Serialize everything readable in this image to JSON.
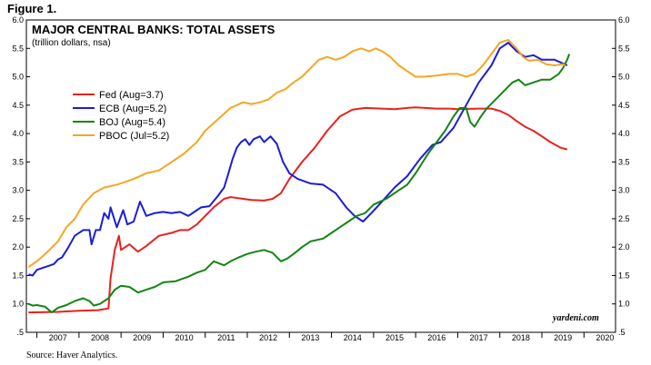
{
  "figure_label": "Figure 1.",
  "source": "Source: Haver Analytics.",
  "chart_data": {
    "type": "line",
    "title": "MAJOR CENTRAL BANKS: TOTAL ASSETS",
    "subtitle": "(trillion dollars, nsa)",
    "credit": "yardeni.com",
    "ylim": [
      0.5,
      6.0
    ],
    "xlim": [
      2006.75,
      2020.75
    ],
    "y_ticks": [
      ".5",
      "1.0",
      "1.5",
      "2.0",
      "2.5",
      "3.0",
      "3.5",
      "4.0",
      "4.5",
      "5.0",
      "5.5",
      "6.0"
    ],
    "x_ticks": [
      "2007",
      "2008",
      "2009",
      "2010",
      "2011",
      "2012",
      "2013",
      "2014",
      "2015",
      "2016",
      "2017",
      "2018",
      "2019",
      "2020"
    ],
    "grid": false,
    "legend_position": "upper-left",
    "series": [
      {
        "name": "Fed (Aug=3.7)",
        "color": "#e8211d",
        "points": [
          [
            2006.8,
            0.85
          ],
          [
            2007.5,
            0.86
          ],
          [
            2008.0,
            0.88
          ],
          [
            2008.45,
            0.89
          ],
          [
            2008.7,
            0.92
          ],
          [
            2008.75,
            1.45
          ],
          [
            2008.85,
            1.95
          ],
          [
            2008.95,
            2.2
          ],
          [
            2009.0,
            1.95
          ],
          [
            2009.2,
            2.05
          ],
          [
            2009.4,
            1.92
          ],
          [
            2009.6,
            2.02
          ],
          [
            2009.9,
            2.2
          ],
          [
            2010.2,
            2.25
          ],
          [
            2010.4,
            2.3
          ],
          [
            2010.6,
            2.3
          ],
          [
            2010.8,
            2.4
          ],
          [
            2011.0,
            2.55
          ],
          [
            2011.2,
            2.7
          ],
          [
            2011.45,
            2.85
          ],
          [
            2011.6,
            2.88
          ],
          [
            2011.9,
            2.85
          ],
          [
            2012.1,
            2.83
          ],
          [
            2012.4,
            2.82
          ],
          [
            2012.6,
            2.85
          ],
          [
            2012.8,
            2.95
          ],
          [
            2013.0,
            3.2
          ],
          [
            2013.3,
            3.5
          ],
          [
            2013.6,
            3.75
          ],
          [
            2013.9,
            4.05
          ],
          [
            2014.2,
            4.3
          ],
          [
            2014.5,
            4.42
          ],
          [
            2014.8,
            4.45
          ],
          [
            2015.2,
            4.44
          ],
          [
            2015.5,
            4.43
          ],
          [
            2015.8,
            4.45
          ],
          [
            2016.0,
            4.46
          ],
          [
            2016.5,
            4.44
          ],
          [
            2016.8,
            4.44
          ],
          [
            2017.0,
            4.43
          ],
          [
            2017.5,
            4.44
          ],
          [
            2017.8,
            4.44
          ],
          [
            2018.0,
            4.4
          ],
          [
            2018.2,
            4.33
          ],
          [
            2018.4,
            4.22
          ],
          [
            2018.6,
            4.12
          ],
          [
            2018.8,
            4.05
          ],
          [
            2019.0,
            3.95
          ],
          [
            2019.2,
            3.85
          ],
          [
            2019.45,
            3.75
          ],
          [
            2019.6,
            3.72
          ]
        ]
      },
      {
        "name": "ECB (Aug=5.2)",
        "color": "#1c1cd9",
        "points": [
          [
            2006.8,
            1.52
          ],
          [
            2006.9,
            1.5
          ],
          [
            2007.0,
            1.6
          ],
          [
            2007.2,
            1.65
          ],
          [
            2007.4,
            1.7
          ],
          [
            2007.5,
            1.78
          ],
          [
            2007.6,
            1.82
          ],
          [
            2007.75,
            2.0
          ],
          [
            2007.9,
            2.2
          ],
          [
            2008.1,
            2.3
          ],
          [
            2008.25,
            2.3
          ],
          [
            2008.3,
            2.05
          ],
          [
            2008.4,
            2.3
          ],
          [
            2008.5,
            2.3
          ],
          [
            2008.6,
            2.6
          ],
          [
            2008.7,
            2.5
          ],
          [
            2008.75,
            2.7
          ],
          [
            2008.9,
            2.35
          ],
          [
            2009.05,
            2.65
          ],
          [
            2009.15,
            2.4
          ],
          [
            2009.3,
            2.45
          ],
          [
            2009.45,
            2.8
          ],
          [
            2009.6,
            2.55
          ],
          [
            2009.8,
            2.6
          ],
          [
            2010.0,
            2.62
          ],
          [
            2010.2,
            2.6
          ],
          [
            2010.4,
            2.62
          ],
          [
            2010.6,
            2.55
          ],
          [
            2010.8,
            2.65
          ],
          [
            2010.9,
            2.7
          ],
          [
            2011.1,
            2.72
          ],
          [
            2011.3,
            2.9
          ],
          [
            2011.45,
            3.05
          ],
          [
            2011.55,
            3.3
          ],
          [
            2011.65,
            3.55
          ],
          [
            2011.75,
            3.75
          ],
          [
            2011.85,
            3.85
          ],
          [
            2011.95,
            3.9
          ],
          [
            2012.05,
            3.8
          ],
          [
            2012.15,
            3.9
          ],
          [
            2012.3,
            3.95
          ],
          [
            2012.4,
            3.85
          ],
          [
            2012.55,
            3.95
          ],
          [
            2012.7,
            3.82
          ],
          [
            2012.85,
            3.5
          ],
          [
            2013.0,
            3.3
          ],
          [
            2013.2,
            3.2
          ],
          [
            2013.5,
            3.12
          ],
          [
            2013.8,
            3.1
          ],
          [
            2014.1,
            2.95
          ],
          [
            2014.35,
            2.7
          ],
          [
            2014.55,
            2.55
          ],
          [
            2014.75,
            2.45
          ],
          [
            2014.95,
            2.6
          ],
          [
            2015.2,
            2.8
          ],
          [
            2015.5,
            3.05
          ],
          [
            2015.8,
            3.25
          ],
          [
            2016.1,
            3.55
          ],
          [
            2016.4,
            3.8
          ],
          [
            2016.6,
            3.85
          ],
          [
            2016.9,
            4.1
          ],
          [
            2017.2,
            4.5
          ],
          [
            2017.5,
            4.9
          ],
          [
            2017.8,
            5.2
          ],
          [
            2018.0,
            5.5
          ],
          [
            2018.2,
            5.6
          ],
          [
            2018.4,
            5.45
          ],
          [
            2018.6,
            5.35
          ],
          [
            2018.8,
            5.38
          ],
          [
            2019.0,
            5.3
          ],
          [
            2019.3,
            5.3
          ],
          [
            2019.6,
            5.2
          ]
        ]
      },
      {
        "name": "BOJ (Aug=5.4)",
        "color": "#128512",
        "points": [
          [
            2006.8,
            1.0
          ],
          [
            2006.9,
            0.97
          ],
          [
            2007.0,
            0.98
          ],
          [
            2007.2,
            0.95
          ],
          [
            2007.35,
            0.85
          ],
          [
            2007.5,
            0.93
          ],
          [
            2007.7,
            0.98
          ],
          [
            2007.9,
            1.05
          ],
          [
            2008.1,
            1.1
          ],
          [
            2008.25,
            1.05
          ],
          [
            2008.35,
            0.97
          ],
          [
            2008.5,
            1.0
          ],
          [
            2008.7,
            1.1
          ],
          [
            2008.85,
            1.25
          ],
          [
            2009.0,
            1.32
          ],
          [
            2009.2,
            1.3
          ],
          [
            2009.4,
            1.2
          ],
          [
            2009.6,
            1.25
          ],
          [
            2009.8,
            1.3
          ],
          [
            2010.0,
            1.38
          ],
          [
            2010.3,
            1.4
          ],
          [
            2010.6,
            1.48
          ],
          [
            2010.8,
            1.55
          ],
          [
            2011.0,
            1.6
          ],
          [
            2011.2,
            1.75
          ],
          [
            2011.45,
            1.68
          ],
          [
            2011.6,
            1.75
          ],
          [
            2011.8,
            1.82
          ],
          [
            2012.0,
            1.88
          ],
          [
            2012.2,
            1.92
          ],
          [
            2012.4,
            1.95
          ],
          [
            2012.6,
            1.9
          ],
          [
            2012.8,
            1.75
          ],
          [
            2012.95,
            1.8
          ],
          [
            2013.1,
            1.88
          ],
          [
            2013.3,
            2.0
          ],
          [
            2013.5,
            2.1
          ],
          [
            2013.8,
            2.15
          ],
          [
            2014.0,
            2.25
          ],
          [
            2014.2,
            2.35
          ],
          [
            2014.4,
            2.45
          ],
          [
            2014.6,
            2.55
          ],
          [
            2014.8,
            2.6
          ],
          [
            2015.0,
            2.75
          ],
          [
            2015.3,
            2.85
          ],
          [
            2015.6,
            3.0
          ],
          [
            2015.8,
            3.1
          ],
          [
            2016.0,
            3.3
          ],
          [
            2016.3,
            3.65
          ],
          [
            2016.5,
            3.85
          ],
          [
            2016.7,
            4.05
          ],
          [
            2016.9,
            4.3
          ],
          [
            2017.05,
            4.45
          ],
          [
            2017.2,
            4.45
          ],
          [
            2017.3,
            4.2
          ],
          [
            2017.4,
            4.12
          ],
          [
            2017.55,
            4.3
          ],
          [
            2017.7,
            4.45
          ],
          [
            2017.9,
            4.6
          ],
          [
            2018.1,
            4.75
          ],
          [
            2018.3,
            4.9
          ],
          [
            2018.45,
            4.95
          ],
          [
            2018.6,
            4.85
          ],
          [
            2018.8,
            4.9
          ],
          [
            2019.0,
            4.95
          ],
          [
            2019.2,
            4.95
          ],
          [
            2019.4,
            5.05
          ],
          [
            2019.5,
            5.15
          ],
          [
            2019.6,
            5.3
          ],
          [
            2019.65,
            5.4
          ]
        ]
      },
      {
        "name": "PBOC (Jul=5.2)",
        "color": "#f5a623",
        "points": [
          [
            2006.8,
            1.65
          ],
          [
            2007.0,
            1.75
          ],
          [
            2007.2,
            1.88
          ],
          [
            2007.5,
            2.1
          ],
          [
            2007.7,
            2.35
          ],
          [
            2007.9,
            2.5
          ],
          [
            2008.1,
            2.75
          ],
          [
            2008.35,
            2.95
          ],
          [
            2008.6,
            3.05
          ],
          [
            2008.9,
            3.1
          ],
          [
            2009.1,
            3.15
          ],
          [
            2009.3,
            3.2
          ],
          [
            2009.6,
            3.3
          ],
          [
            2009.9,
            3.35
          ],
          [
            2010.2,
            3.5
          ],
          [
            2010.5,
            3.65
          ],
          [
            2010.8,
            3.85
          ],
          [
            2011.0,
            4.05
          ],
          [
            2011.3,
            4.25
          ],
          [
            2011.6,
            4.45
          ],
          [
            2011.9,
            4.55
          ],
          [
            2012.1,
            4.52
          ],
          [
            2012.3,
            4.55
          ],
          [
            2012.5,
            4.6
          ],
          [
            2012.7,
            4.72
          ],
          [
            2012.9,
            4.78
          ],
          [
            2013.1,
            4.9
          ],
          [
            2013.3,
            5.0
          ],
          [
            2013.5,
            5.15
          ],
          [
            2013.7,
            5.3
          ],
          [
            2013.9,
            5.35
          ],
          [
            2014.1,
            5.3
          ],
          [
            2014.3,
            5.35
          ],
          [
            2014.5,
            5.45
          ],
          [
            2014.7,
            5.5
          ],
          [
            2014.9,
            5.45
          ],
          [
            2015.05,
            5.5
          ],
          [
            2015.2,
            5.45
          ],
          [
            2015.4,
            5.35
          ],
          [
            2015.6,
            5.2
          ],
          [
            2015.8,
            5.1
          ],
          [
            2016.0,
            5.0
          ],
          [
            2016.2,
            5.0
          ],
          [
            2016.5,
            5.02
          ],
          [
            2016.8,
            5.05
          ],
          [
            2017.0,
            5.05
          ],
          [
            2017.2,
            5.0
          ],
          [
            2017.4,
            5.05
          ],
          [
            2017.6,
            5.2
          ],
          [
            2017.8,
            5.4
          ],
          [
            2018.0,
            5.6
          ],
          [
            2018.2,
            5.65
          ],
          [
            2018.4,
            5.5
          ],
          [
            2018.55,
            5.35
          ],
          [
            2018.7,
            5.28
          ],
          [
            2018.9,
            5.3
          ],
          [
            2019.1,
            5.22
          ],
          [
            2019.3,
            5.2
          ],
          [
            2019.5,
            5.22
          ],
          [
            2019.55,
            5.2
          ]
        ]
      }
    ]
  }
}
